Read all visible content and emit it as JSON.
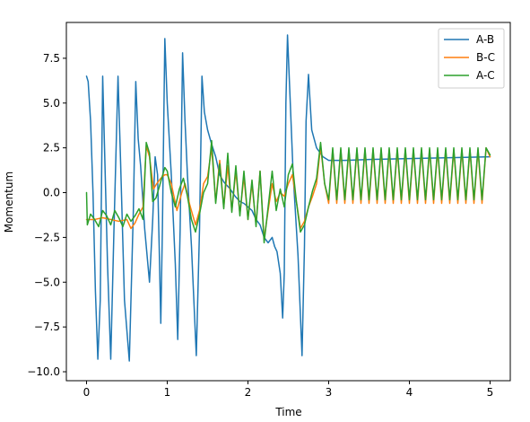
{
  "chart_data": {
    "type": "line",
    "title": "",
    "xlabel": "Time",
    "ylabel": "Momentum",
    "xlim": [
      -0.25,
      5.25
    ],
    "ylim": [
      -10.5,
      9.5
    ],
    "x_ticks": [
      0,
      1,
      2,
      3,
      4,
      5
    ],
    "x_tick_labels": [
      "0",
      "1",
      "2",
      "3",
      "4",
      "5"
    ],
    "y_ticks": [
      -10.0,
      -7.5,
      -5.0,
      -2.5,
      0.0,
      2.5,
      5.0,
      7.5
    ],
    "y_tick_labels": [
      "−10.0",
      "−7.5",
      "−5.0",
      "−2.5",
      "0.0",
      "2.5",
      "5.0",
      "7.5"
    ],
    "grid": false,
    "legend_position": "top-right",
    "colors": {
      "A-B": "#1f77b4",
      "B-C": "#ff7f0e",
      "A-C": "#2ca02c"
    },
    "series": [
      {
        "name": "A-B",
        "points": [
          [
            0.0,
            6.5
          ],
          [
            0.02,
            6.2
          ],
          [
            0.05,
            4.0
          ],
          [
            0.08,
            0.0
          ],
          [
            0.11,
            -5.5
          ],
          [
            0.14,
            -9.3
          ],
          [
            0.17,
            -6.0
          ],
          [
            0.2,
            6.5
          ],
          [
            0.22,
            3.0
          ],
          [
            0.26,
            -4.0
          ],
          [
            0.3,
            -9.3
          ],
          [
            0.34,
            -2.0
          ],
          [
            0.39,
            6.5
          ],
          [
            0.42,
            2.0
          ],
          [
            0.47,
            -6.0
          ],
          [
            0.53,
            -9.4
          ],
          [
            0.58,
            -1.0
          ],
          [
            0.61,
            6.2
          ],
          [
            0.64,
            3.0
          ],
          [
            0.67,
            1.5
          ],
          [
            0.72,
            -2.0
          ],
          [
            0.78,
            -5.0
          ],
          [
            0.82,
            -1.5
          ],
          [
            0.85,
            2.0
          ],
          [
            0.88,
            1.0
          ],
          [
            0.9,
            -3.0
          ],
          [
            0.92,
            -7.3
          ],
          [
            0.94,
            -2.0
          ],
          [
            0.97,
            8.6
          ],
          [
            1.0,
            5.0
          ],
          [
            1.05,
            1.0
          ],
          [
            1.1,
            -4.0
          ],
          [
            1.13,
            -8.2
          ],
          [
            1.16,
            -2.0
          ],
          [
            1.19,
            7.8
          ],
          [
            1.22,
            4.0
          ],
          [
            1.25,
            1.0
          ],
          [
            1.3,
            -3.0
          ],
          [
            1.36,
            -9.1
          ],
          [
            1.4,
            -2.0
          ],
          [
            1.43,
            6.5
          ],
          [
            1.46,
            4.5
          ],
          [
            1.5,
            3.5
          ],
          [
            1.55,
            2.7
          ],
          [
            1.6,
            2.0
          ],
          [
            1.65,
            1.0
          ],
          [
            1.7,
            0.6
          ],
          [
            1.78,
            0.2
          ],
          [
            1.84,
            -0.2
          ],
          [
            1.9,
            -0.5
          ],
          [
            1.95,
            -0.6
          ],
          [
            2.0,
            -0.8
          ],
          [
            2.05,
            -1.0
          ],
          [
            2.1,
            -1.5
          ],
          [
            2.15,
            -1.8
          ],
          [
            2.2,
            -2.5
          ],
          [
            2.25,
            -2.8
          ],
          [
            2.3,
            -2.5
          ],
          [
            2.33,
            -3.0
          ],
          [
            2.36,
            -3.3
          ],
          [
            2.4,
            -4.5
          ],
          [
            2.43,
            -7.0
          ],
          [
            2.45,
            -4.5
          ],
          [
            2.47,
            5.0
          ],
          [
            2.49,
            8.8
          ],
          [
            2.52,
            5.5
          ],
          [
            2.56,
            1.0
          ],
          [
            2.62,
            -3.5
          ],
          [
            2.67,
            -9.1
          ],
          [
            2.7,
            -3.0
          ],
          [
            2.72,
            4.0
          ],
          [
            2.75,
            6.6
          ],
          [
            2.79,
            3.5
          ],
          [
            2.85,
            2.5
          ],
          [
            2.93,
            2.0
          ],
          [
            3.0,
            1.8
          ],
          [
            3.2,
            1.8
          ],
          [
            3.5,
            1.85
          ],
          [
            4.0,
            1.9
          ],
          [
            4.5,
            1.95
          ],
          [
            5.0,
            2.0
          ]
        ]
      },
      {
        "name": "B-C",
        "points": [
          [
            0.0,
            -1.5
          ],
          [
            0.1,
            -1.5
          ],
          [
            0.2,
            -1.4
          ],
          [
            0.3,
            -1.5
          ],
          [
            0.4,
            -1.6
          ],
          [
            0.5,
            -1.5
          ],
          [
            0.55,
            -2.0
          ],
          [
            0.6,
            -1.7
          ],
          [
            0.65,
            -1.2
          ],
          [
            0.7,
            -0.8
          ],
          [
            0.74,
            2.6
          ],
          [
            0.78,
            2.0
          ],
          [
            0.83,
            0.2
          ],
          [
            0.87,
            0.5
          ],
          [
            0.92,
            0.8
          ],
          [
            0.97,
            1.0
          ],
          [
            1.0,
            1.0
          ],
          [
            1.05,
            0.5
          ],
          [
            1.12,
            -1.0
          ],
          [
            1.18,
            0.0
          ],
          [
            1.22,
            0.5
          ],
          [
            1.28,
            -0.7
          ],
          [
            1.35,
            -1.8
          ],
          [
            1.4,
            -1.0
          ],
          [
            1.45,
            0.5
          ],
          [
            1.5,
            0.9
          ],
          [
            1.55,
            2.5
          ],
          [
            1.6,
            -0.5
          ],
          [
            1.65,
            1.8
          ],
          [
            1.7,
            -0.8
          ],
          [
            1.75,
            1.5
          ],
          [
            1.8,
            -1.0
          ],
          [
            1.85,
            1.2
          ],
          [
            1.9,
            -1.2
          ],
          [
            1.95,
            0.9
          ],
          [
            2.0,
            -1.5
          ],
          [
            2.05,
            0.5
          ],
          [
            2.1,
            -1.8
          ],
          [
            2.15,
            1.2
          ],
          [
            2.2,
            -2.6
          ],
          [
            2.25,
            -1.0
          ],
          [
            2.3,
            0.5
          ],
          [
            2.35,
            -0.5
          ],
          [
            2.4,
            0.0
          ],
          [
            2.45,
            -0.2
          ],
          [
            2.5,
            0.5
          ],
          [
            2.55,
            1.0
          ],
          [
            2.6,
            -0.5
          ],
          [
            2.65,
            -2.0
          ],
          [
            2.7,
            -1.6
          ],
          [
            2.75,
            -0.8
          ],
          [
            2.8,
            -0.2
          ],
          [
            2.85,
            0.5
          ],
          [
            2.9,
            2.6
          ],
          [
            2.95,
            0.5
          ],
          [
            3.0,
            -0.6
          ],
          [
            3.05,
            2.4
          ],
          [
            3.1,
            -0.6
          ],
          [
            3.15,
            2.4
          ],
          [
            3.2,
            -0.6
          ],
          [
            3.25,
            2.4
          ],
          [
            3.3,
            -0.6
          ],
          [
            3.35,
            2.4
          ],
          [
            3.4,
            -0.6
          ],
          [
            3.45,
            2.4
          ],
          [
            3.5,
            -0.6
          ],
          [
            3.55,
            2.4
          ],
          [
            3.6,
            -0.6
          ],
          [
            3.65,
            2.4
          ],
          [
            3.7,
            -0.6
          ],
          [
            3.75,
            2.4
          ],
          [
            3.8,
            -0.6
          ],
          [
            3.85,
            2.4
          ],
          [
            3.9,
            -0.6
          ],
          [
            3.95,
            2.4
          ],
          [
            4.0,
            -0.6
          ],
          [
            4.05,
            2.4
          ],
          [
            4.1,
            -0.6
          ],
          [
            4.15,
            2.4
          ],
          [
            4.2,
            -0.6
          ],
          [
            4.25,
            2.4
          ],
          [
            4.3,
            -0.6
          ],
          [
            4.35,
            2.4
          ],
          [
            4.4,
            -0.6
          ],
          [
            4.45,
            2.4
          ],
          [
            4.5,
            -0.6
          ],
          [
            4.55,
            2.4
          ],
          [
            4.6,
            -0.6
          ],
          [
            4.65,
            2.4
          ],
          [
            4.7,
            -0.6
          ],
          [
            4.75,
            2.4
          ],
          [
            4.8,
            -0.6
          ],
          [
            4.85,
            2.4
          ],
          [
            4.9,
            -0.6
          ],
          [
            4.95,
            2.5
          ],
          [
            5.0,
            2.0
          ]
        ]
      },
      {
        "name": "A-C",
        "points": [
          [
            0.0,
            0.0
          ],
          [
            0.01,
            -1.8
          ],
          [
            0.05,
            -1.2
          ],
          [
            0.1,
            -1.5
          ],
          [
            0.15,
            -1.9
          ],
          [
            0.2,
            -1.0
          ],
          [
            0.25,
            -1.3
          ],
          [
            0.3,
            -1.8
          ],
          [
            0.35,
            -1.0
          ],
          [
            0.4,
            -1.4
          ],
          [
            0.45,
            -1.9
          ],
          [
            0.5,
            -1.2
          ],
          [
            0.55,
            -1.6
          ],
          [
            0.6,
            -1.3
          ],
          [
            0.65,
            -0.9
          ],
          [
            0.7,
            -1.5
          ],
          [
            0.74,
            2.8
          ],
          [
            0.78,
            2.2
          ],
          [
            0.82,
            -0.5
          ],
          [
            0.86,
            -0.3
          ],
          [
            0.9,
            0.3
          ],
          [
            0.97,
            1.4
          ],
          [
            1.0,
            1.2
          ],
          [
            1.05,
            0.0
          ],
          [
            1.1,
            -0.8
          ],
          [
            1.15,
            0.2
          ],
          [
            1.2,
            0.8
          ],
          [
            1.25,
            -0.2
          ],
          [
            1.3,
            -1.5
          ],
          [
            1.35,
            -2.2
          ],
          [
            1.4,
            -1.2
          ],
          [
            1.45,
            0.0
          ],
          [
            1.5,
            0.5
          ],
          [
            1.55,
            2.9
          ],
          [
            1.6,
            -0.6
          ],
          [
            1.65,
            1.6
          ],
          [
            1.7,
            -0.9
          ],
          [
            1.75,
            2.2
          ],
          [
            1.8,
            -1.1
          ],
          [
            1.85,
            1.5
          ],
          [
            1.9,
            -1.3
          ],
          [
            1.95,
            1.2
          ],
          [
            2.0,
            -1.5
          ],
          [
            2.05,
            0.7
          ],
          [
            2.1,
            -1.9
          ],
          [
            2.15,
            1.2
          ],
          [
            2.2,
            -2.8
          ],
          [
            2.25,
            -0.8
          ],
          [
            2.3,
            1.2
          ],
          [
            2.35,
            -1.0
          ],
          [
            2.4,
            0.2
          ],
          [
            2.45,
            -0.8
          ],
          [
            2.5,
            1.0
          ],
          [
            2.55,
            1.6
          ],
          [
            2.6,
            -0.5
          ],
          [
            2.65,
            -2.2
          ],
          [
            2.7,
            -1.8
          ],
          [
            2.75,
            -0.8
          ],
          [
            2.8,
            0.1
          ],
          [
            2.85,
            0.8
          ],
          [
            2.9,
            2.8
          ],
          [
            2.95,
            0.5
          ],
          [
            3.0,
            -0.4
          ],
          [
            3.05,
            2.5
          ],
          [
            3.1,
            -0.4
          ],
          [
            3.15,
            2.5
          ],
          [
            3.2,
            -0.4
          ],
          [
            3.25,
            2.5
          ],
          [
            3.3,
            -0.4
          ],
          [
            3.35,
            2.5
          ],
          [
            3.4,
            -0.4
          ],
          [
            3.45,
            2.5
          ],
          [
            3.5,
            -0.4
          ],
          [
            3.55,
            2.5
          ],
          [
            3.6,
            -0.4
          ],
          [
            3.65,
            2.5
          ],
          [
            3.7,
            -0.4
          ],
          [
            3.75,
            2.5
          ],
          [
            3.8,
            -0.4
          ],
          [
            3.85,
            2.5
          ],
          [
            3.9,
            -0.4
          ],
          [
            3.95,
            2.5
          ],
          [
            4.0,
            -0.4
          ],
          [
            4.05,
            2.5
          ],
          [
            4.1,
            -0.4
          ],
          [
            4.15,
            2.5
          ],
          [
            4.2,
            -0.4
          ],
          [
            4.25,
            2.5
          ],
          [
            4.3,
            -0.4
          ],
          [
            4.35,
            2.5
          ],
          [
            4.4,
            -0.4
          ],
          [
            4.45,
            2.5
          ],
          [
            4.5,
            -0.4
          ],
          [
            4.55,
            2.5
          ],
          [
            4.6,
            -0.4
          ],
          [
            4.65,
            2.5
          ],
          [
            4.7,
            -0.4
          ],
          [
            4.75,
            2.5
          ],
          [
            4.8,
            -0.4
          ],
          [
            4.85,
            2.5
          ],
          [
            4.9,
            -0.4
          ],
          [
            4.95,
            2.5
          ],
          [
            5.0,
            2.1
          ]
        ]
      }
    ]
  }
}
